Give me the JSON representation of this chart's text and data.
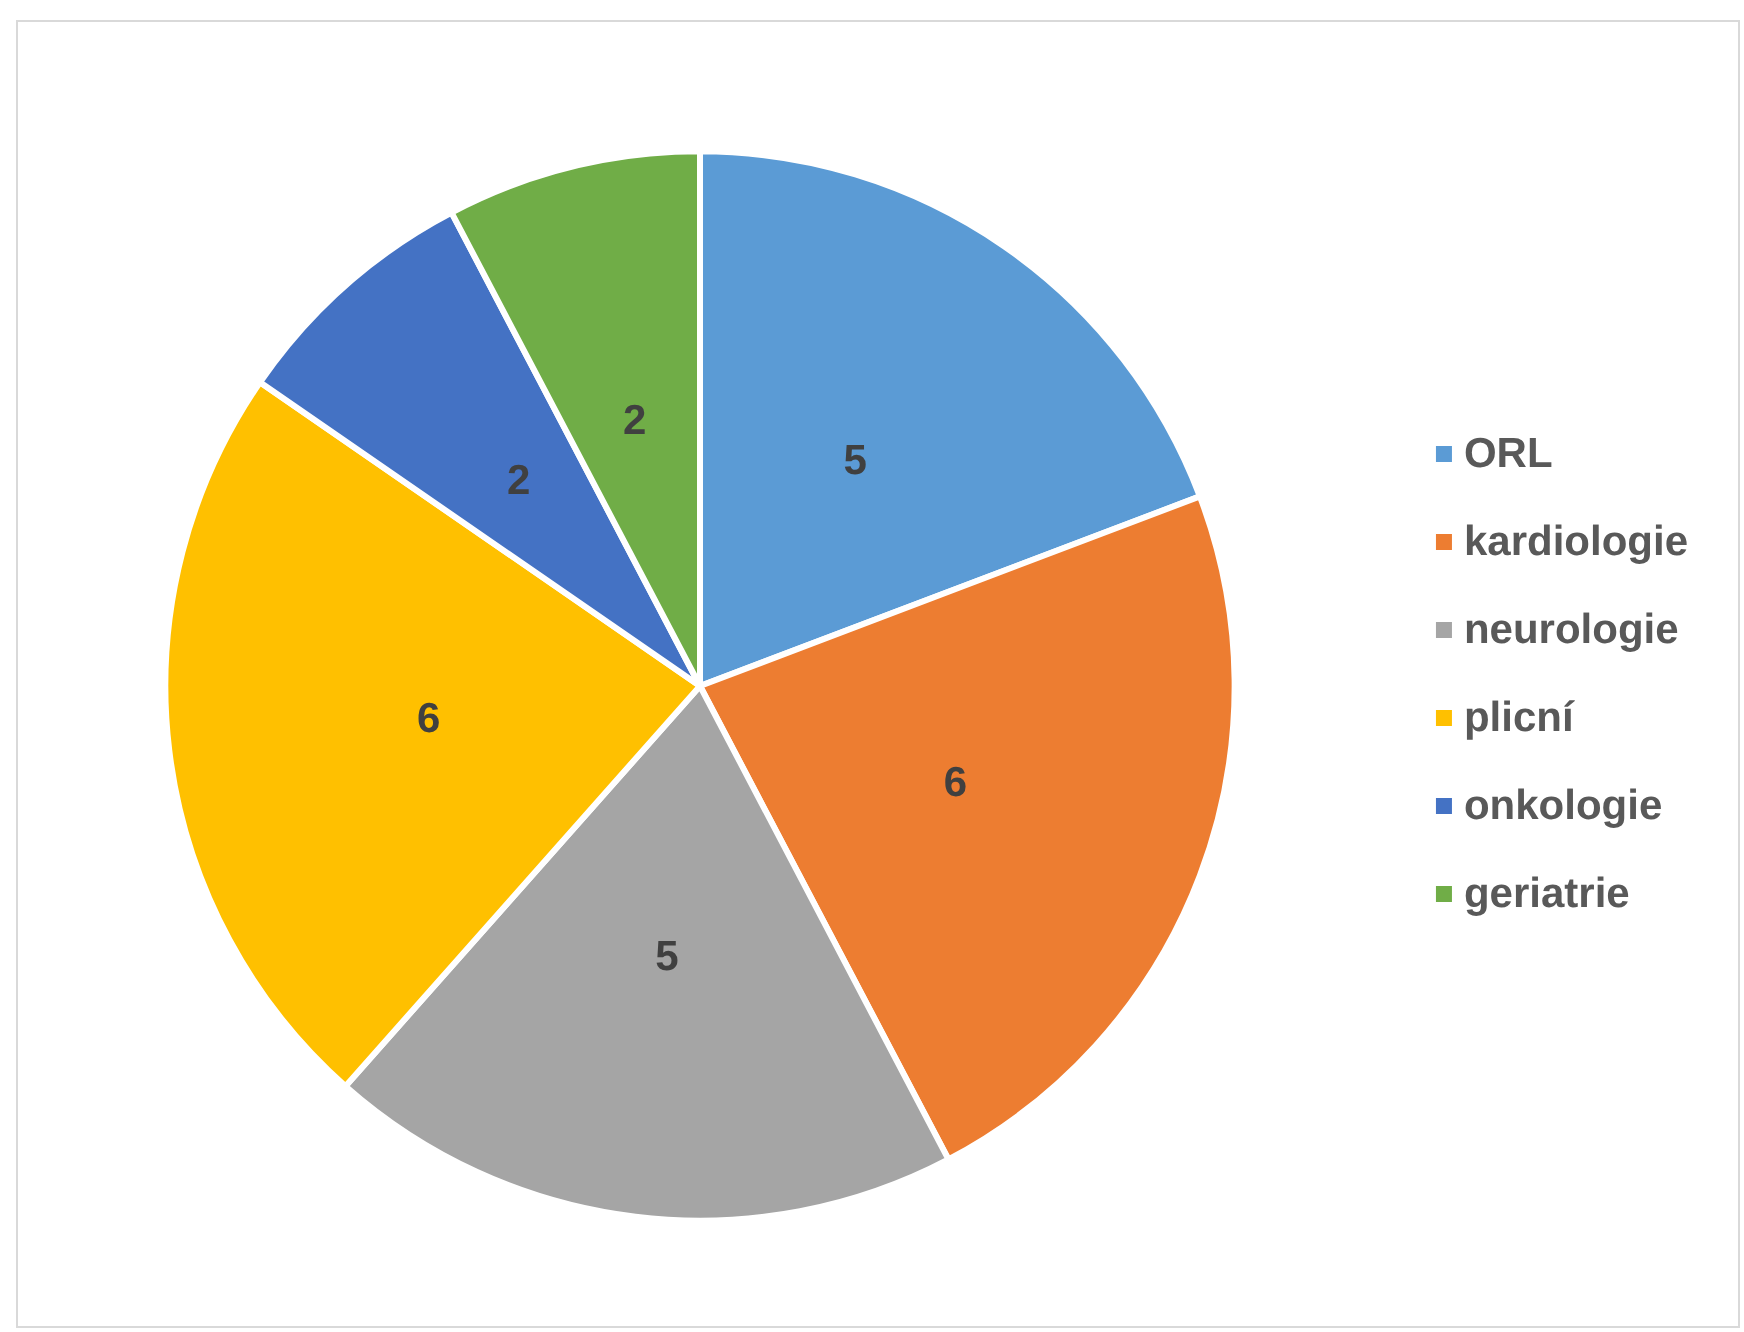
{
  "chart_data": {
    "type": "pie",
    "categories": [
      "ORL",
      "kardiologie",
      "neurologie",
      "plicní",
      "onkologie",
      "geriatrie"
    ],
    "values": [
      5,
      6,
      5,
      6,
      2,
      2
    ],
    "colors": [
      "#5b9bd5",
      "#ed7d31",
      "#a5a5a5",
      "#ffc000",
      "#4472c4",
      "#70ad47"
    ],
    "data_labels": true,
    "legend": "right"
  }
}
